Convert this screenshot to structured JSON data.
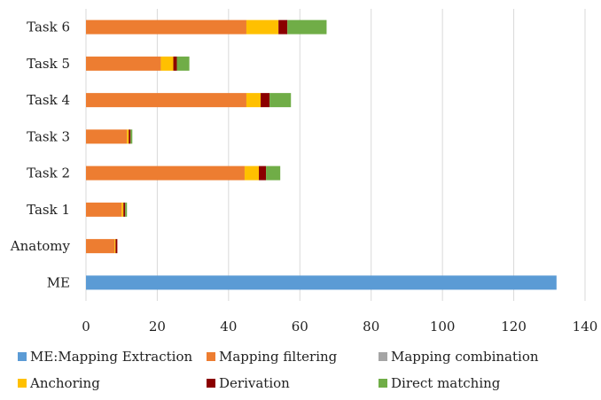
{
  "chart_data": {
    "type": "bar",
    "orientation": "horizontal",
    "stacked": true,
    "title": "",
    "xlabel": "",
    "ylabel": "",
    "xlim": [
      0,
      140
    ],
    "x_ticks": [
      0,
      20,
      40,
      60,
      80,
      100,
      120,
      140
    ],
    "categories": [
      "ME",
      "Anatomy",
      "Task 1",
      "Task 2",
      "Task 3",
      "Task 4",
      "Task 5",
      "Task 6"
    ],
    "series": [
      {
        "name": "ME:Mapping Extraction",
        "color": "#5B9BD5",
        "values": [
          132,
          0,
          0,
          0,
          0,
          0,
          0,
          0
        ]
      },
      {
        "name": "Mapping filtering",
        "color": "#ED7D31",
        "values": [
          0,
          8,
          10,
          44.5,
          11.5,
          45,
          21,
          45
        ]
      },
      {
        "name": "Mapping combination",
        "color": "#A5A5A5",
        "values": [
          0,
          0,
          0,
          0,
          0,
          0,
          0,
          0
        ]
      },
      {
        "name": "Anchoring",
        "color": "#FFC000",
        "values": [
          0,
          0.3,
          0.5,
          4,
          0.5,
          4,
          3.5,
          9
        ]
      },
      {
        "name": "Derivation",
        "color": "#8B0000",
        "values": [
          0,
          0.5,
          0.5,
          2,
          0.5,
          2.5,
          1,
          2.5
        ]
      },
      {
        "name": "Direct matching",
        "color": "#70AD47",
        "values": [
          0,
          0,
          0.5,
          4,
          0.5,
          6,
          3.5,
          11
        ]
      }
    ],
    "grid": true,
    "legend_position": "bottom"
  }
}
